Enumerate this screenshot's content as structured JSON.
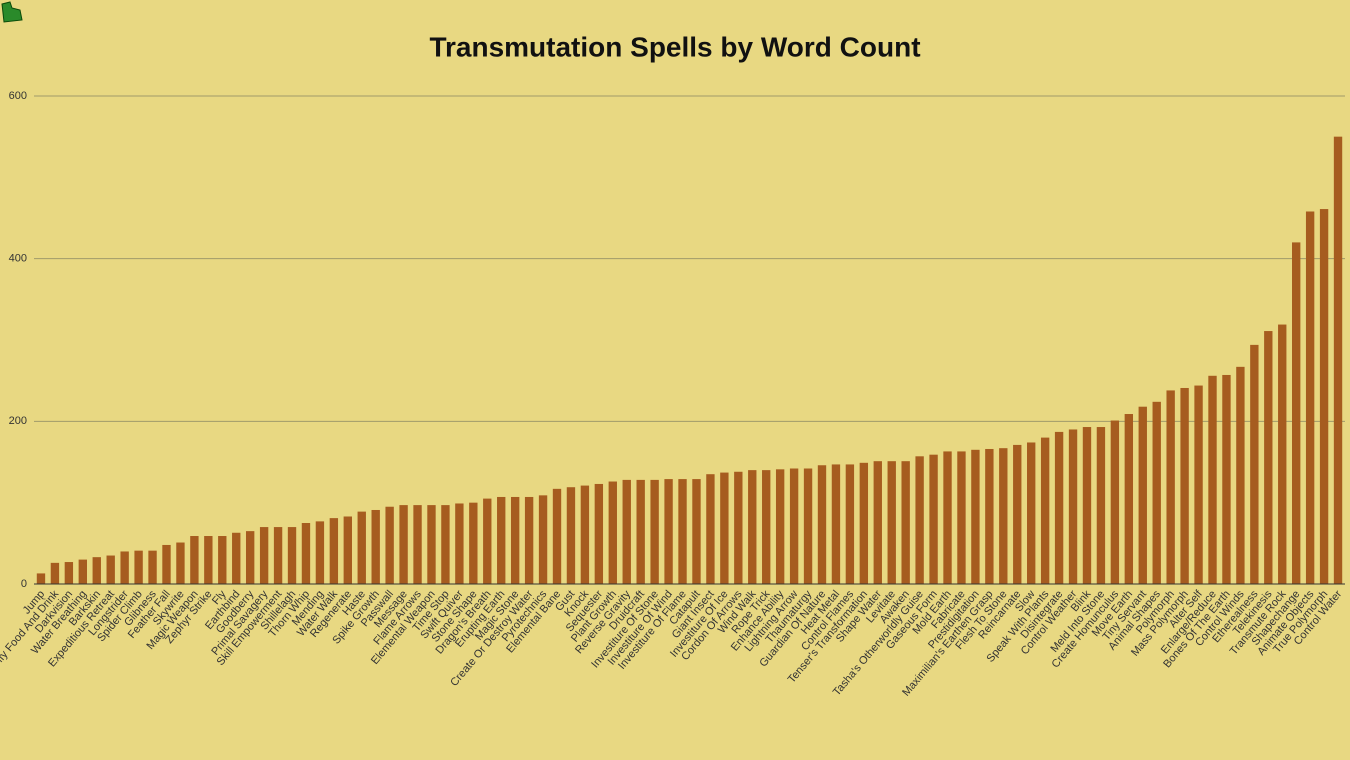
{
  "chart_data": {
    "type": "bar",
    "title": "Transmutation Spells by Word Count",
    "categories": [
      "Jump",
      "Purify Food And Drink",
      "Darkvision",
      "Water Breathing",
      "Barkskin",
      "Expeditious Retreat",
      "Longstrider",
      "Spider Climb",
      "Glibness",
      "Feather Fall",
      "Skywrite",
      "Magic Weapon",
      "Zephyr Strike",
      "Fly",
      "Earthbind",
      "Goodberry",
      "Primal Savagery",
      "Skill Empowerment",
      "Shillelagh",
      "Thorn Whip",
      "Mending",
      "Water Walk",
      "Regenerate",
      "Haste",
      "Spike Growth",
      "Passwall",
      "Message",
      "Flame Arrows",
      "Elemental Weapon",
      "Time Stop",
      "Swift Quiver",
      "Stone Shape",
      "Dragon's Breath",
      "Erupting Earth",
      "Magic Stone",
      "Create Or Destroy Water",
      "Pyrotechnics",
      "Elemental Bane",
      "Gust",
      "Knock",
      "Sequester",
      "Plant Growth",
      "Reverse Gravity",
      "Druidcraft",
      "Investiture Of Stone",
      "Investiture Of Wind",
      "Investiture Of Flame",
      "Catapult",
      "Giant Insect",
      "Investiture Of Ice",
      "Cordon Of Arrows",
      "Wind Walk",
      "Rope Trick",
      "Enhance Ability",
      "Lightning Arrow",
      "Thaumaturgy",
      "Guardian Of Nature",
      "Heat Metal",
      "Control Flames",
      "Tenser's Transformation",
      "Shape Water",
      "Levitate",
      "Awaken",
      "Tasha's Otherworldly Guise",
      "Gaseous Form",
      "Mold Earth",
      "Fabricate",
      "Prestidigitation",
      "Maximilian's Earthen Grasp",
      "Flesh To Stone",
      "Reincarnate",
      "Slow",
      "Speak With Plants",
      "Disintegrate",
      "Control Weather",
      "Blink",
      "Meld Into Stone",
      "Create Homunculus",
      "Move Earth",
      "Tiny Servant",
      "Animal Shapes",
      "Polymorph",
      "Mass Polymorph",
      "Alter Self",
      "Enlarge/Reduce",
      "Bones Of The Earth",
      "Control Winds",
      "Etherealness",
      "Telekinesis",
      "Transmute Rock",
      "Shapechange",
      "Animate Objects",
      "True Polymorph",
      "Control Water"
    ],
    "values": [
      13,
      26,
      27,
      30,
      33,
      35,
      40,
      41,
      41,
      48,
      51,
      59,
      59,
      59,
      63,
      65,
      70,
      70,
      70,
      75,
      77,
      81,
      83,
      89,
      91,
      95,
      97,
      97,
      97,
      97,
      99,
      100,
      105,
      107,
      107,
      107,
      109,
      117,
      119,
      121,
      123,
      126,
      128,
      128,
      128,
      129,
      129,
      129,
      135,
      137,
      138,
      140,
      140,
      141,
      142,
      142,
      146,
      147,
      147,
      149,
      151,
      151,
      151,
      157,
      159,
      163,
      163,
      165,
      166,
      167,
      171,
      174,
      180,
      187,
      190,
      193,
      193,
      201,
      209,
      218,
      224,
      238,
      241,
      244,
      256,
      257,
      267,
      294,
      311,
      319,
      420,
      458,
      461,
      550
    ],
    "color": "#a65c1f",
    "ylim": [
      0,
      600
    ],
    "yticks": [
      0,
      200,
      400,
      600
    ],
    "grid": true
  }
}
